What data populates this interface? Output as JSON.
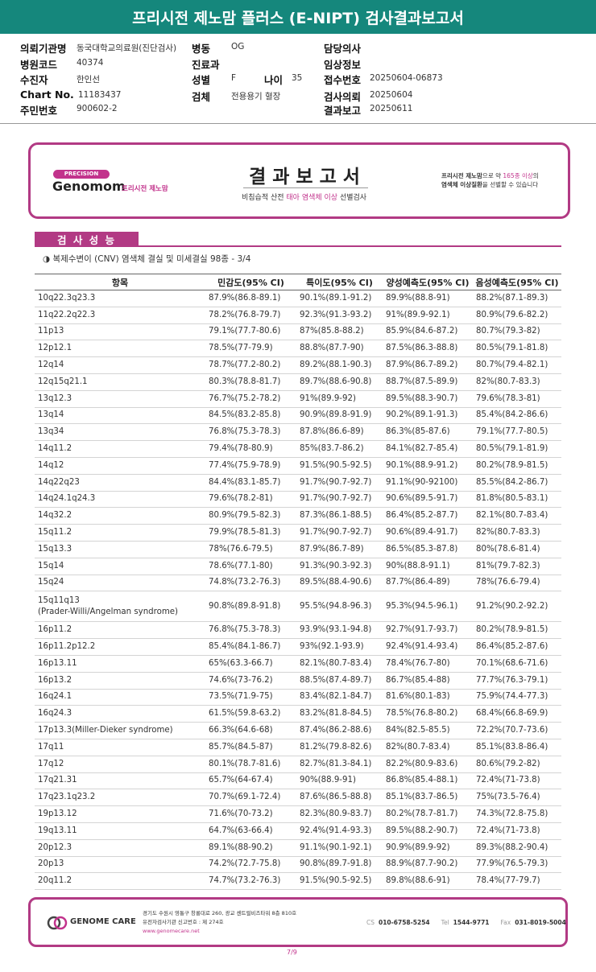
{
  "header": {
    "title": "프리시전 제노맘 플러스 (E-NIPT) 검사결과보고서"
  },
  "patient_info": {
    "fields": [
      {
        "label": "의뢰기관명",
        "value": "동국대학교의료원(진단검사)"
      },
      {
        "label": "병동",
        "value": "OG"
      },
      {
        "label": "담당의사"
      },
      {
        "label": "병원코드",
        "value": "40374"
      },
      {
        "label": "진료과"
      },
      {
        "label": "임상정보"
      },
      {
        "label": "수진자",
        "value": "한인선"
      },
      {
        "label": "성별",
        "value": "F"
      },
      {
        "label": "나이",
        "value": "35"
      },
      {
        "label": "접수번호",
        "value": "20250604-06873"
      },
      {
        "label": "Chart No.",
        "value": "11183437"
      },
      {
        "label": "검체",
        "value": "전용용기 혈장"
      },
      {
        "label": "검사의뢰",
        "value": "20250604"
      },
      {
        "label": "주민번호",
        "value": "900602-2"
      },
      {
        "label": "결과보고",
        "value": "20250611"
      }
    ]
  },
  "banner": {
    "logo_tag": "PRECISION",
    "logo_name": "Genomom",
    "logo_sub": "프리시전 제노맘",
    "title": "결 과 보 고 서",
    "subtitle": [
      "비침습적 산전 ",
      "태아 염색체 이상",
      " 선별검사"
    ],
    "note_line1": [
      "프리시전 제노맘",
      "으로 약 ",
      "165종 이상",
      "의"
    ],
    "note_line2": [
      "염색체 이상질환",
      "을 선별할 수 있습니다"
    ]
  },
  "section": {
    "title": "검 사 성 능",
    "subtitle": "◑ 복제수변이 (CNV) 염색체 결실 및 미세결실 98종 - 3/4"
  },
  "table": {
    "headers": [
      "항목",
      "민감도(95% CI)",
      "특이도(95% CI)",
      "양성예측도(95% CI)",
      "음성예측도(95% CI)"
    ],
    "rows": [
      [
        "10q22.3q23.3",
        "87.9%(86.8-89.1)",
        "90.1%(89.1-91.2)",
        "89.9%(88.8-91)",
        "88.2%(87.1-89.3)"
      ],
      [
        "11q22.2q22.3",
        "78.2%(76.8-79.7)",
        "92.3%(91.3-93.2)",
        "91%(89.9-92.1)",
        "80.9%(79.6-82.2)"
      ],
      [
        "11p13",
        "79.1%(77.7-80.6)",
        "87%(85.8-88.2)",
        "85.9%(84.6-87.2)",
        "80.7%(79.3-82)"
      ],
      [
        "12p12.1",
        "78.5%(77-79.9)",
        "88.8%(87.7-90)",
        "87.5%(86.3-88.8)",
        "80.5%(79.1-81.8)"
      ],
      [
        "12q14",
        "78.7%(77.2-80.2)",
        "89.2%(88.1-90.3)",
        "87.9%(86.7-89.2)",
        "80.7%(79.4-82.1)"
      ],
      [
        "12q15q21.1",
        "80.3%(78.8-81.7)",
        "89.7%(88.6-90.8)",
        "88.7%(87.5-89.9)",
        "82%(80.7-83.3)"
      ],
      [
        "13q12.3",
        "76.7%(75.2-78.2)",
        "91%(89.9-92)",
        "89.5%(88.3-90.7)",
        "79.6%(78.3-81)"
      ],
      [
        "13q14",
        "84.5%(83.2-85.8)",
        "90.9%(89.8-91.9)",
        "90.2%(89.1-91.3)",
        "85.4%(84.2-86.6)"
      ],
      [
        "13q34",
        "76.8%(75.3-78.3)",
        "87.8%(86.6-89)",
        "86.3%(85-87.6)",
        "79.1%(77.7-80.5)"
      ],
      [
        "14q11.2",
        "79.4%(78-80.9)",
        "85%(83.7-86.2)",
        "84.1%(82.7-85.4)",
        "80.5%(79.1-81.9)"
      ],
      [
        "14q12",
        "77.4%(75.9-78.9)",
        "91.5%(90.5-92.5)",
        "90.1%(88.9-91.2)",
        "80.2%(78.9-81.5)"
      ],
      [
        "14q22q23",
        "84.4%(83.1-85.7)",
        "91.7%(90.7-92.7)",
        "91.1%(90-92100)",
        "85.5%(84.2-86.7)"
      ],
      [
        "14q24.1q24.3",
        "79.6%(78.2-81)",
        "91.7%(90.7-92.7)",
        "90.6%(89.5-91.7)",
        "81.8%(80.5-83.1)"
      ],
      [
        "14q32.2",
        "80.9%(79.5-82.3)",
        "87.3%(86.1-88.5)",
        "86.4%(85.2-87.7)",
        "82.1%(80.7-83.4)"
      ],
      [
        "15q11.2",
        "79.9%(78.5-81.3)",
        "91.7%(90.7-92.7)",
        "90.6%(89.4-91.7)",
        "82%(80.7-83.3)"
      ],
      [
        "15q13.3",
        "78%(76.6-79.5)",
        "87.9%(86.7-89)",
        "86.5%(85.3-87.8)",
        "80%(78.6-81.4)"
      ],
      [
        "15q14",
        "78.6%(77.1-80)",
        "91.3%(90.3-92.3)",
        "90%(88.8-91.1)",
        "81%(79.7-82.3)"
      ],
      [
        "15q24",
        "74.8%(73.2-76.3)",
        "89.5%(88.4-90.6)",
        "87.7%(86.4-89)",
        "78%(76.6-79.4)"
      ],
      [
        "15q11q13\n(Prader-Willi/Angelman syndrome)",
        "90.8%(89.8-91.8)",
        "95.5%(94.8-96.3)",
        "95.3%(94.5-96.1)",
        "91.2%(90.2-92.2)"
      ],
      [
        "16p11.2",
        "76.8%(75.3-78.3)",
        "93.9%(93.1-94.8)",
        "92.7%(91.7-93.7)",
        "80.2%(78.9-81.5)"
      ],
      [
        "16p11.2p12.2",
        "85.4%(84.1-86.7)",
        "93%(92.1-93.9)",
        "92.4%(91.4-93.4)",
        "86.4%(85.2-87.6)"
      ],
      [
        "16p13.11",
        "65%(63.3-66.7)",
        "82.1%(80.7-83.4)",
        "78.4%(76.7-80)",
        "70.1%(68.6-71.6)"
      ],
      [
        "16p13.2",
        "74.6%(73-76.2)",
        "88.5%(87.4-89.7)",
        "86.7%(85.4-88)",
        "77.7%(76.3-79.1)"
      ],
      [
        "16q24.1",
        "73.5%(71.9-75)",
        "83.4%(82.1-84.7)",
        "81.6%(80.1-83)",
        "75.9%(74.4-77.3)"
      ],
      [
        "16q24.3",
        "61.5%(59.8-63.2)",
        "83.2%(81.8-84.5)",
        "78.5%(76.8-80.2)",
        "68.4%(66.8-69.9)"
      ],
      [
        "17p13.3(Miller-Dieker syndrome)",
        "66.3%(64.6-68)",
        "87.4%(86.2-88.6)",
        "84%(82.5-85.5)",
        "72.2%(70.7-73.6)"
      ],
      [
        "17q11",
        "85.7%(84.5-87)",
        "81.2%(79.8-82.6)",
        "82%(80.7-83.4)",
        "85.1%(83.8-86.4)"
      ],
      [
        "17q12",
        "80.1%(78.7-81.6)",
        "82.7%(81.3-84.1)",
        "82.2%(80.9-83.6)",
        "80.6%(79.2-82)"
      ],
      [
        "17q21.31",
        "65.7%(64-67.4)",
        "90%(88.9-91)",
        "86.8%(85.4-88.1)",
        "72.4%(71-73.8)"
      ],
      [
        "17q23.1q23.2",
        "70.7%(69.1-72.4)",
        "87.6%(86.5-88.8)",
        "85.1%(83.7-86.5)",
        "75%(73.5-76.4)"
      ],
      [
        "19p13.12",
        "71.6%(70-73.2)",
        "82.3%(80.9-83.7)",
        "80.2%(78.7-81.7)",
        "74.3%(72.8-75.8)"
      ],
      [
        "19q13.11",
        "64.7%(63-66.4)",
        "92.4%(91.4-93.3)",
        "89.5%(88.2-90.7)",
        "72.4%(71-73.8)"
      ],
      [
        "20p12.3",
        "89.1%(88-90.2)",
        "91.1%(90.1-92.1)",
        "90.9%(89.9-92)",
        "89.3%(88.2-90.4)"
      ],
      [
        "20p13",
        "74.2%(72.7-75.8)",
        "90.8%(89.7-91.8)",
        "88.9%(87.7-90.2)",
        "77.9%(76.5-79.3)"
      ],
      [
        "20q11.2",
        "74.7%(73.2-76.3)",
        "91.5%(90.5-92.5)",
        "89.8%(88.6-91)",
        "78.4%(77-79.7)"
      ]
    ]
  },
  "footer": {
    "logo": "GENOME CARE",
    "address": "경기도 수원시 영통구 창룡대로 260, 광교 센트럴비즈타워 8층 810호",
    "license": "유전자검사기관 신고번호 : 제 274호",
    "website": "www.genomecare.net",
    "contacts": [
      {
        "label": "CS",
        "value": "010-6758-5254"
      },
      {
        "label": "Tel",
        "value": "1544-9771"
      },
      {
        "label": "Fax",
        "value": "031-8019-5004"
      }
    ],
    "page": "7/9"
  }
}
